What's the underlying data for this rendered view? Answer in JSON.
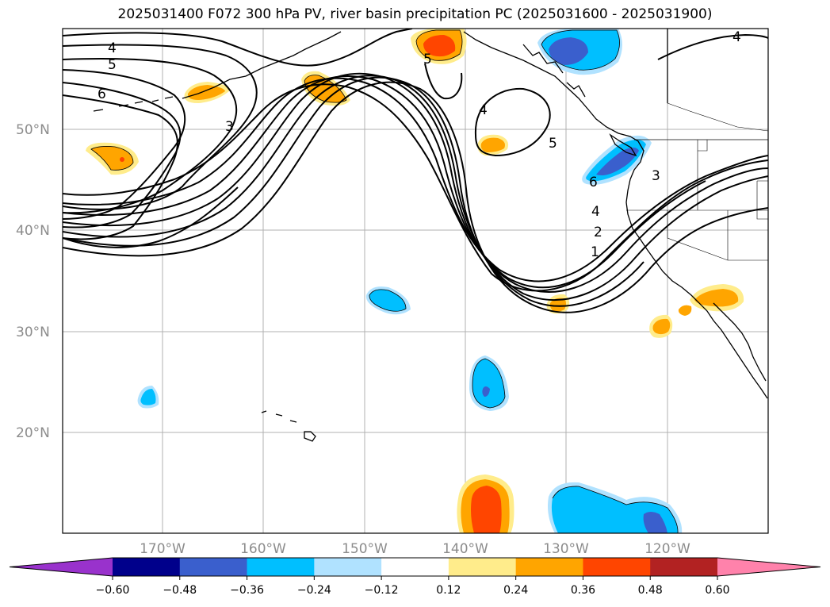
{
  "title": "2025031400 F072 300 hPa PV, river basin precipitation PC (2025031600 - 2025031900)",
  "latitude_labels": [
    "50°N",
    "40°N",
    "30°N",
    "20°N"
  ],
  "longitude_labels": [
    "170°W",
    "160°W",
    "150°W",
    "140°W",
    "130°W",
    "120°W"
  ],
  "colorbar": {
    "tick_labels": [
      "−0.60",
      "−0.48",
      "−0.36",
      "−0.24",
      "−0.12",
      "0.12",
      "0.24",
      "0.36",
      "0.48",
      "0.60"
    ],
    "colors": [
      "#9932cc",
      "#00008b",
      "#3a5fcd",
      "#00bfff",
      "#b0e2ff",
      "#ffffff",
      "#ffec8b",
      "#ffa500",
      "#ff4500",
      "#b22222",
      "#ff82ab"
    ]
  },
  "contour_labels": [
    {
      "text": "4",
      "id": "pv-4-west"
    },
    {
      "text": "5",
      "id": "pv-5-west"
    },
    {
      "text": "6",
      "id": "pv-6-west"
    },
    {
      "text": "3",
      "id": "pv-3-aleutian"
    },
    {
      "text": "5",
      "id": "pv-5-gulf-alaska"
    },
    {
      "text": "4",
      "id": "pv-4-cutoff"
    },
    {
      "text": "5",
      "id": "pv-5-trough"
    },
    {
      "text": "6",
      "id": "pv-6-coast"
    },
    {
      "text": "3",
      "id": "pv-3-inland"
    },
    {
      "text": "4",
      "id": "pv-4-ridge"
    },
    {
      "text": "2",
      "id": "pv-2-ridge"
    },
    {
      "text": "1",
      "id": "pv-1-ridge"
    },
    {
      "text": "4",
      "id": "pv-4-northeast"
    }
  ]
}
